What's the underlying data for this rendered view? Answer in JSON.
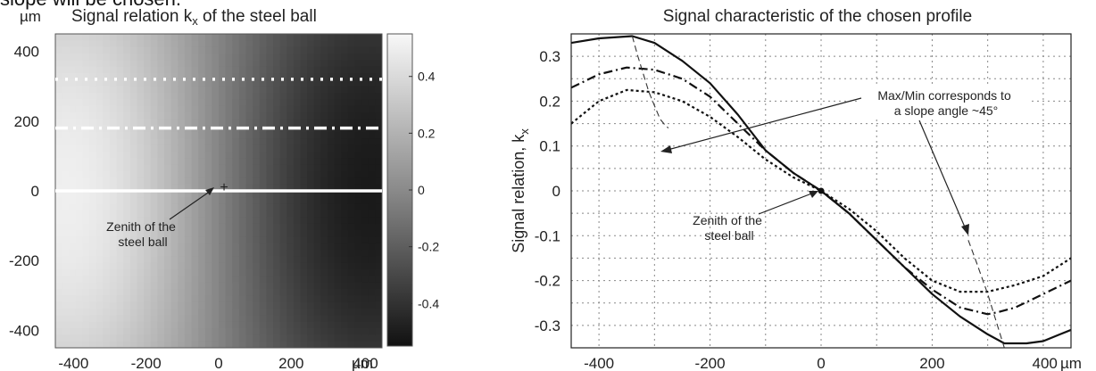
{
  "cutoff_text": "slope will be chosen.",
  "chart_data": [
    {
      "type": "heatmap",
      "title": "Signal relation k",
      "title_sub": "x",
      "title_rest": " of the steel ball",
      "y_unit": "µm",
      "x_unit": "µm",
      "xlim": [
        -450,
        450
      ],
      "ylim": [
        -450,
        450
      ],
      "x_ticks": [
        -400,
        -200,
        0,
        200,
        400
      ],
      "x_tick_labels": [
        "-400",
        "-200",
        "0",
        "200",
        "400"
      ],
      "y_ticks": [
        400,
        200,
        0,
        -200,
        -400
      ],
      "y_tick_labels": [
        "400",
        "200",
        "0",
        "-200",
        "-400"
      ],
      "colorbar": {
        "range": [
          -0.55,
          0.55
        ],
        "ticks": [
          0.4,
          0.2,
          0,
          -0.2,
          -0.4
        ],
        "tick_labels": [
          "0.4",
          "0.2",
          "0",
          "-0.2",
          "-0.4"
        ]
      },
      "profile_lines": [
        {
          "y": 320,
          "style": "dotted",
          "color": "#ffffff"
        },
        {
          "y": 180,
          "style": "dash-dot",
          "color": "#ffffff"
        },
        {
          "y": 0,
          "style": "solid",
          "color": "#ffffff"
        }
      ],
      "marker": {
        "x": 0,
        "y": 0,
        "symbol": "+"
      },
      "annotation": {
        "lines": [
          "Zenith of the",
          "steel ball"
        ]
      }
    },
    {
      "type": "line",
      "title": "Signal characteristic of the chosen profile",
      "ylabel": "Signal relation, k",
      "ylabel_sub": "x",
      "xlim": [
        -450,
        450
      ],
      "ylim": [
        -0.35,
        0.35
      ],
      "x_unit": "µm",
      "x_ticks": [
        -400,
        -200,
        0,
        200,
        400
      ],
      "x_tick_labels": [
        "-400",
        "-200",
        "0",
        "200",
        "400"
      ],
      "y_ticks": [
        0.3,
        0.2,
        0.1,
        0,
        -0.1,
        -0.2,
        -0.3
      ],
      "y_tick_labels": [
        "0.3",
        "0.2",
        "0.1",
        "0",
        "-0.1",
        "-0.2",
        "-0.3"
      ],
      "grid": true,
      "series": [
        {
          "style": "solid",
          "x": [
            -450,
            -400,
            -340,
            -300,
            -250,
            -200,
            -150,
            -100,
            -50,
            0,
            50,
            100,
            150,
            200,
            250,
            300,
            330,
            370,
            400,
            430,
            450
          ],
          "y": [
            0.33,
            0.34,
            0.345,
            0.33,
            0.29,
            0.24,
            0.17,
            0.09,
            0.04,
            0,
            -0.05,
            -0.11,
            -0.17,
            -0.23,
            -0.28,
            -0.32,
            -0.34,
            -0.34,
            -0.335,
            -0.32,
            -0.31
          ]
        },
        {
          "style": "dash-dot",
          "x": [
            -450,
            -400,
            -350,
            -300,
            -250,
            -200,
            -150,
            -100,
            -50,
            0,
            50,
            100,
            150,
            200,
            250,
            300,
            320,
            350,
            400,
            450
          ],
          "y": [
            0.23,
            0.26,
            0.275,
            0.27,
            0.25,
            0.21,
            0.15,
            0.09,
            0.04,
            0,
            -0.05,
            -0.11,
            -0.17,
            -0.22,
            -0.26,
            -0.275,
            -0.27,
            -0.26,
            -0.23,
            -0.2
          ]
        },
        {
          "style": "dotted",
          "x": [
            -450,
            -400,
            -350,
            -300,
            -250,
            -200,
            -150,
            -100,
            -50,
            0,
            50,
            100,
            150,
            200,
            250,
            300,
            350,
            400,
            450
          ],
          "y": [
            0.15,
            0.2,
            0.225,
            0.22,
            0.2,
            0.165,
            0.12,
            0.07,
            0.03,
            0,
            -0.04,
            -0.09,
            -0.15,
            -0.2,
            -0.225,
            -0.225,
            -0.21,
            -0.19,
            -0.15
          ]
        },
        {
          "style": "thin-dashed",
          "x": [
            -340,
            -330,
            -320,
            -310,
            -300,
            -290,
            -280,
            -275
          ],
          "y": [
            0.345,
            0.3,
            0.26,
            0.22,
            0.19,
            0.16,
            0.145,
            0.14
          ]
        },
        {
          "style": "thin-dashed",
          "x": [
            265,
            280,
            300,
            310,
            320,
            330
          ],
          "y": [
            -0.11,
            -0.16,
            -0.23,
            -0.27,
            -0.31,
            -0.35
          ]
        }
      ],
      "annotations": [
        {
          "lines": [
            "Max/Min corresponds to",
            "a slope angle ~45°"
          ]
        },
        {
          "lines": [
            "Zenith of the",
            "steel ball"
          ]
        }
      ]
    }
  ]
}
